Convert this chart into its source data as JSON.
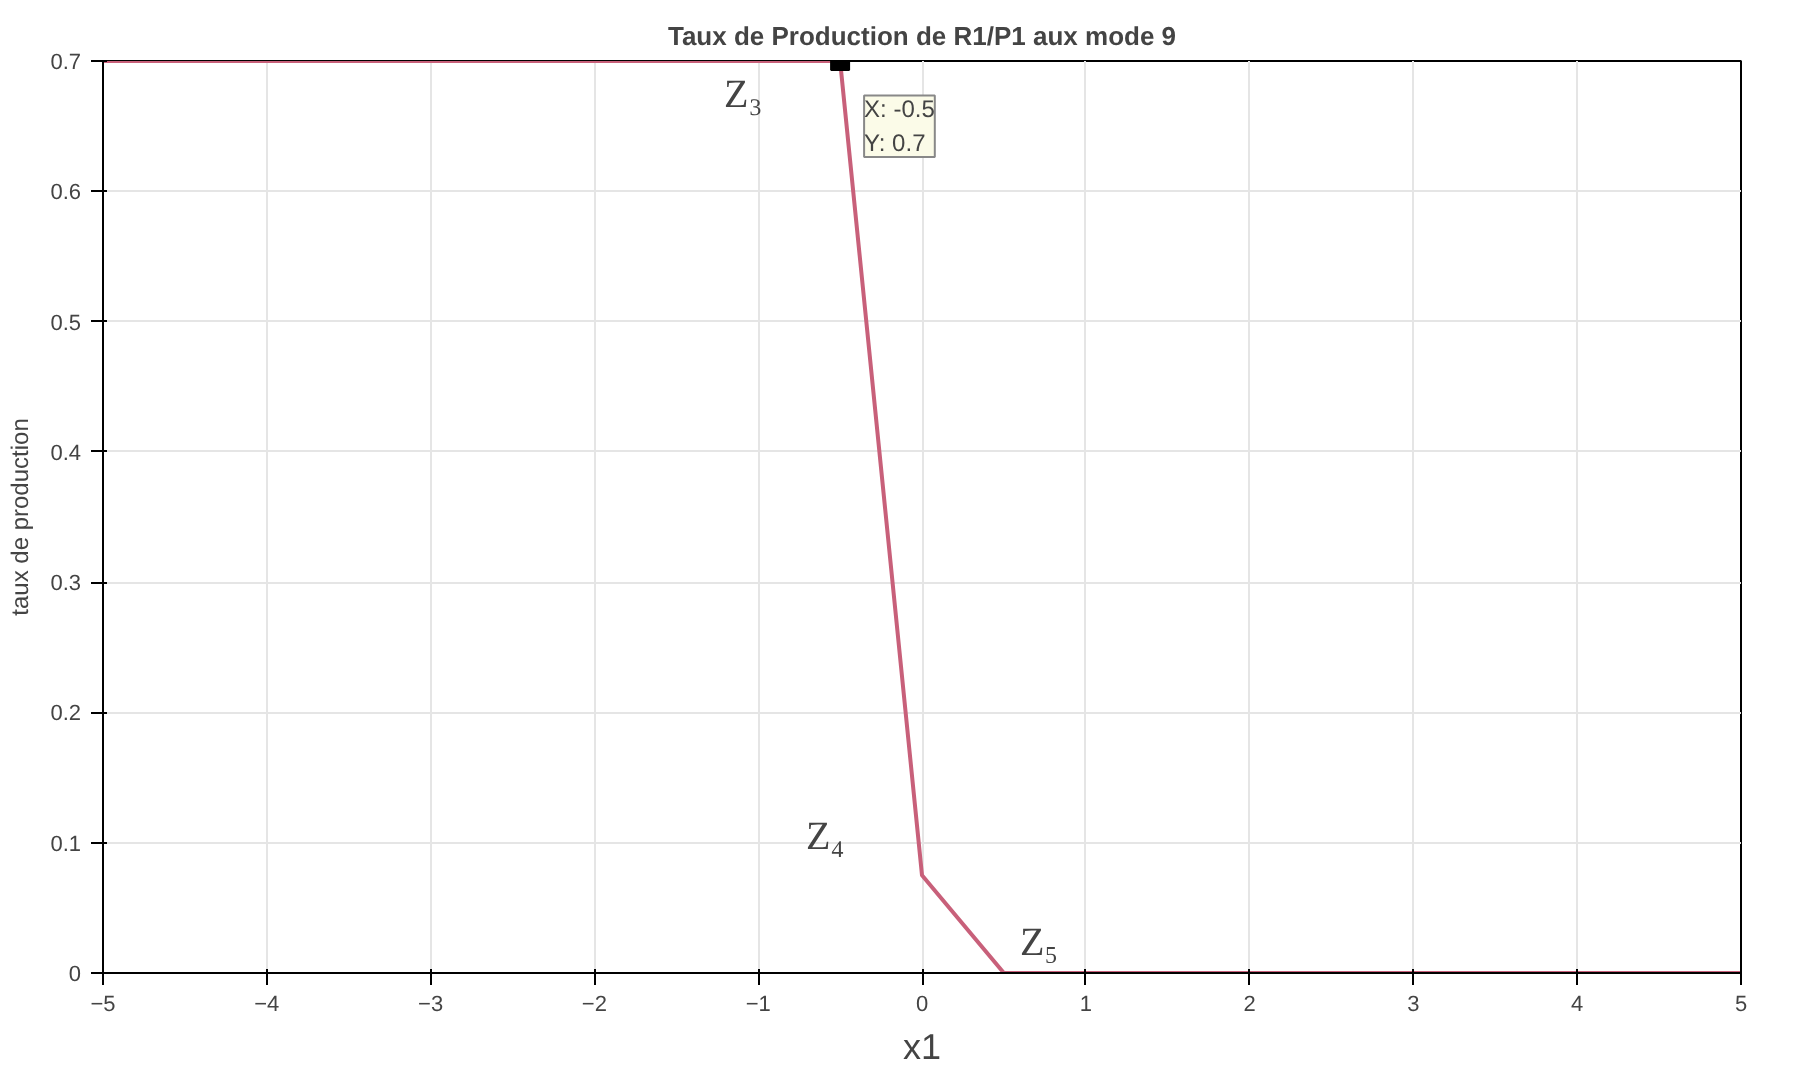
{
  "chart_data": {
    "type": "line",
    "title": "Taux de Production de R1/P1 aux mode 9",
    "xlabel": "x1",
    "ylabel": "taux de production",
    "x": [
      -5,
      -0.5,
      0,
      0.5,
      5
    ],
    "series": [
      {
        "color": "#c8607a",
        "values": [
          0.7,
          0.7,
          0.075,
          0,
          0
        ]
      }
    ],
    "xlim": [
      -5,
      5
    ],
    "xticks": [
      -5,
      -4,
      -3,
      -2,
      -1,
      0,
      1,
      2,
      3,
      4,
      5
    ],
    "ylim": [
      0,
      0.7
    ],
    "yticks": [
      0,
      0.1,
      0.2,
      0.3,
      0.4,
      0.5,
      0.6,
      0.7
    ],
    "grid": true,
    "marker": "none",
    "line_style": "solid",
    "annotations": [
      {
        "text": "Z₃",
        "x": -0.5,
        "y": 0.7
      },
      {
        "text": "Z₄",
        "x": 0,
        "y": 0.075
      },
      {
        "text": "Z₅",
        "x": 0.5,
        "y": 0
      },
      {
        "text": "X: -0.5\nY: 0.7",
        "x": -0.5,
        "y": 0.7
      }
    ]
  }
}
